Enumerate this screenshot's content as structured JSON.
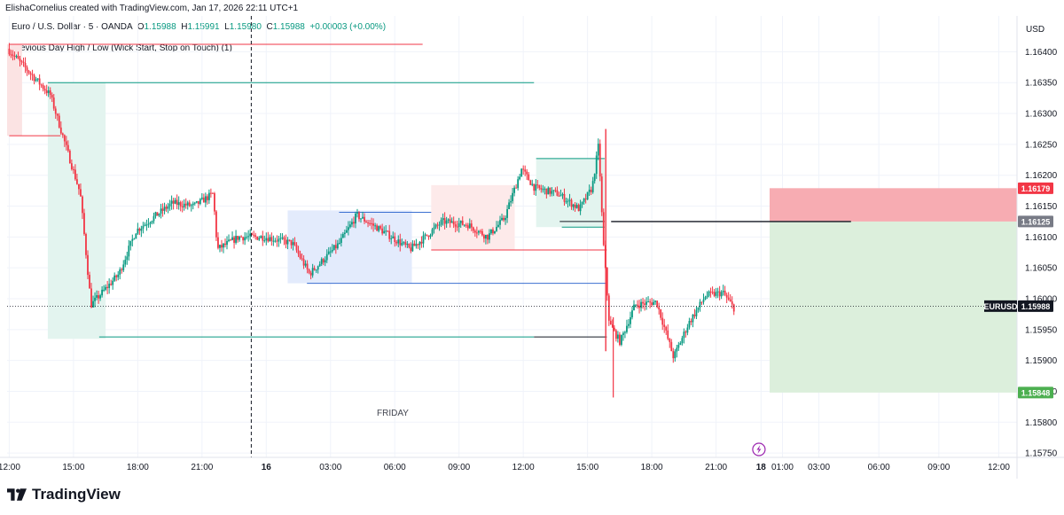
{
  "header": {
    "created_by": "ElishaCornelius created with TradingView.com, Jan 17, 2026 22:11 UTC+1",
    "symbol": "Euro / U.S. Dollar · 5 · OANDA",
    "open_label": "O",
    "open": "1.15988",
    "high_label": "H",
    "high": "1.15991",
    "low_label": "L",
    "low": "1.15980",
    "close_label": "C",
    "close": "1.15988",
    "change": "+0.00003 (+0.00%)"
  },
  "indicator": {
    "label": "Previous Day High / Low (Wick Start, Stop on Touch) (1)"
  },
  "footer": {
    "brand": "TradingView"
  },
  "annotation": {
    "day_label": "FRIDAY"
  },
  "colors": {
    "up": "#089981",
    "down": "#f23645",
    "stop_zone": "#f7a8ae",
    "target_zone": "#dcefdc",
    "teal_box": "#d4efe8",
    "blue_box": "#dde6fb",
    "pink_box": "#fbe3e3",
    "entry_line": "#131722"
  },
  "chart_data": {
    "type": "candlestick",
    "symbol": "EURUSD",
    "price_unit": "USD",
    "y_ticks": [
      "1.16400",
      "1.16350",
      "1.16300",
      "1.16250",
      "1.16200",
      "1.16150",
      "1.16100",
      "1.16050",
      "1.16000",
      "1.15950",
      "1.15900",
      "1.15850",
      "1.15800",
      "1.15750"
    ],
    "x_ticks": [
      {
        "label": "12:00",
        "t": 0
      },
      {
        "label": "15:00",
        "t": 3
      },
      {
        "label": "18:00",
        "t": 6
      },
      {
        "label": "21:00",
        "t": 9
      },
      {
        "label": "16",
        "t": 12,
        "bold": true
      },
      {
        "label": "03:00",
        "t": 15
      },
      {
        "label": "06:00",
        "t": 18
      },
      {
        "label": "09:00",
        "t": 21
      },
      {
        "label": "12:00",
        "t": 24
      },
      {
        "label": "15:00",
        "t": 27
      },
      {
        "label": "18:00",
        "t": 30
      },
      {
        "label": "21:00",
        "t": 33
      },
      {
        "label": "18",
        "t": 35.1,
        "bold": true
      },
      {
        "label": "01:00",
        "t": 36.1
      },
      {
        "label": "03:00",
        "t": 37.8
      },
      {
        "label": "06:00",
        "t": 40.6
      },
      {
        "label": "09:00",
        "t": 43.4
      },
      {
        "label": "12:00",
        "t": 46.2
      }
    ],
    "y_range": [
      1.15743,
      1.16458
    ],
    "x_range": [
      -0.1,
      47.05
    ],
    "current_price": {
      "label": "EURUSD",
      "value": "1.15988"
    },
    "position": {
      "stop": "1.16179",
      "entry": "1.16125",
      "target": "1.15848"
    },
    "prev_day_levels": [
      {
        "value": 1.16412,
        "t1": 0.0,
        "t2": 19.3,
        "color": "#f23645"
      },
      {
        "value": 1.1635,
        "t1": 1.8,
        "t2": 24.5,
        "color": "#089981"
      },
      {
        "value": 1.16264,
        "t1": 0.0,
        "t2": 2.4,
        "color": "#f23645"
      },
      {
        "value": 1.15938,
        "t1": 4.2,
        "t2": 24.5,
        "color": "#089981"
      },
      {
        "value": 1.15938,
        "t1": 24.5,
        "t2": 27.9,
        "color": "#131722"
      },
      {
        "value": 1.1614,
        "t1": 15.4,
        "t2": 19.7,
        "color": "#3b6fd1"
      },
      {
        "value": 1.16025,
        "t1": 13.9,
        "t2": 27.9,
        "color": "#3b6fd1"
      },
      {
        "value": 1.16079,
        "t1": 19.7,
        "t2": 27.9,
        "color": "#f23645"
      },
      {
        "value": 1.16227,
        "t1": 24.6,
        "t2": 27.8,
        "color": "#089981"
      },
      {
        "value": 1.16116,
        "t1": 25.8,
        "t2": 27.8,
        "color": "#089981"
      }
    ],
    "zones": [
      {
        "t1": -0.1,
        "t2": 0.6,
        "y1": 1.16412,
        "y2": 1.16264,
        "color": "#fbe3e3"
      },
      {
        "t1": 1.8,
        "t2": 4.5,
        "y1": 1.1635,
        "y2": 1.15935,
        "color": "#e3f4ef"
      },
      {
        "t1": 13.0,
        "t2": 18.8,
        "y1": 1.16143,
        "y2": 1.16025,
        "color": "#e3ebfc"
      },
      {
        "t1": 19.7,
        "t2": 23.6,
        "y1": 1.16184,
        "y2": 1.16079,
        "color": "#fdeaea"
      },
      {
        "t1": 24.6,
        "t2": 27.8,
        "y1": 1.16227,
        "y2": 1.16116,
        "color": "#e3f4ef"
      }
    ],
    "friday_session_line_t": 11.3,
    "candles_anchor_t": [
      0.0,
      2.0,
      3.4,
      3.9,
      5.2,
      6.0,
      7.7,
      8.7,
      9.6,
      9.8,
      10.8,
      12.0,
      13.3,
      14.1,
      15.5,
      16.3,
      17.5,
      18.8,
      19.5,
      20.3,
      21.5,
      22.4,
      23.2,
      24.0,
      24.6,
      25.7,
      26.7,
      27.3,
      27.6,
      27.8,
      28.1,
      28.6,
      29.3,
      30.3,
      31.1,
      31.8,
      32.6,
      33.4,
      33.9
    ],
    "candles_anchor_price": [
      1.16405,
      1.1633,
      1.1617,
      1.1599,
      1.1604,
      1.1611,
      1.16155,
      1.1615,
      1.1617,
      1.1608,
      1.161,
      1.161,
      1.1609,
      1.1604,
      1.1609,
      1.16135,
      1.1611,
      1.1608,
      1.161,
      1.16125,
      1.1612,
      1.161,
      1.1613,
      1.1621,
      1.1618,
      1.1617,
      1.16145,
      1.1618,
      1.1625,
      1.161,
      1.1596,
      1.1593,
      1.1599,
      1.15995,
      1.15905,
      1.1596,
      1.16005,
      1.1601,
      1.15985
    ]
  }
}
